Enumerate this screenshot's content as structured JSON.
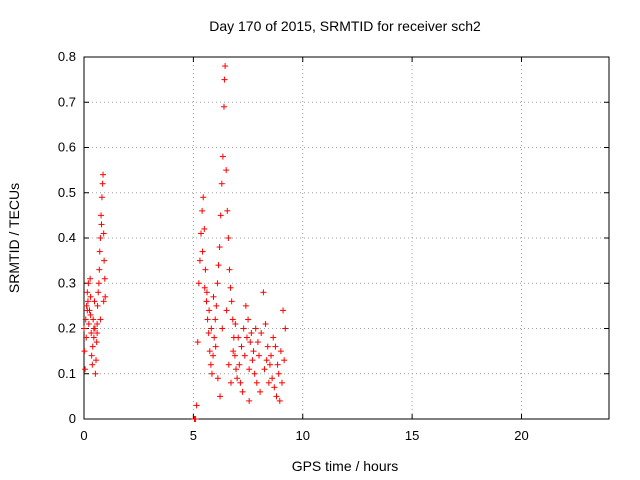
{
  "chart_data": {
    "type": "scatter",
    "title": "Day 170 of 2015, SRMTID for receiver sch2",
    "xlabel": "GPS time / hours",
    "ylabel": "SRMTID / TECUs",
    "xlim": [
      0,
      24
    ],
    "ylim": [
      0,
      0.8
    ],
    "x_ticks": [
      0,
      5,
      10,
      15,
      20
    ],
    "x_tick_labels": [
      "0",
      "5",
      "10",
      "15",
      "20"
    ],
    "y_ticks": [
      0,
      0.1,
      0.2,
      0.3,
      0.4,
      0.5,
      0.6,
      0.7,
      0.8
    ],
    "y_tick_labels": [
      "0",
      "0.1",
      "0.2",
      "0.3",
      "0.4",
      "0.5",
      "0.6",
      "0.7",
      "0.8"
    ],
    "grid": true,
    "marker": "+",
    "color": "#ff0000",
    "series": [
      {
        "name": "sch2",
        "points": [
          [
            0.0,
            0.2
          ],
          [
            0.02,
            0.15
          ],
          [
            0.05,
            0.11
          ],
          [
            0.08,
            0.22
          ],
          [
            0.1,
            0.18
          ],
          [
            0.12,
            0.25
          ],
          [
            0.15,
            0.28
          ],
          [
            0.18,
            0.26
          ],
          [
            0.2,
            0.3
          ],
          [
            0.22,
            0.21
          ],
          [
            0.25,
            0.24
          ],
          [
            0.28,
            0.31
          ],
          [
            0.3,
            0.27
          ],
          [
            0.33,
            0.19
          ],
          [
            0.35,
            0.14
          ],
          [
            0.38,
            0.12
          ],
          [
            0.4,
            0.16
          ],
          [
            0.42,
            0.22
          ],
          [
            0.45,
            0.18
          ],
          [
            0.48,
            0.26
          ],
          [
            0.5,
            0.2
          ],
          [
            0.52,
            0.1
          ],
          [
            0.55,
            0.13
          ],
          [
            0.58,
            0.17
          ],
          [
            0.6,
            0.21
          ],
          [
            0.62,
            0.25
          ],
          [
            0.65,
            0.28
          ],
          [
            0.68,
            0.3
          ],
          [
            0.7,
            0.33
          ],
          [
            0.72,
            0.37
          ],
          [
            0.75,
            0.4
          ],
          [
            0.78,
            0.45
          ],
          [
            0.8,
            0.43
          ],
          [
            0.82,
            0.49
          ],
          [
            0.85,
            0.52
          ],
          [
            0.87,
            0.54
          ],
          [
            0.9,
            0.41
          ],
          [
            0.92,
            0.35
          ],
          [
            0.95,
            0.31
          ],
          [
            0.97,
            0.27
          ],
          [
            0.15,
            0.24
          ],
          [
            0.3,
            0.23
          ],
          [
            0.45,
            0.2
          ],
          [
            0.6,
            0.19
          ],
          [
            0.75,
            0.22
          ],
          [
            0.9,
            0.26
          ],
          [
            5.05,
            0.0
          ],
          [
            5.1,
            0.0
          ],
          [
            5.15,
            0.03
          ],
          [
            5.2,
            0.17
          ],
          [
            5.25,
            0.3
          ],
          [
            5.3,
            0.35
          ],
          [
            5.35,
            0.41
          ],
          [
            5.4,
            0.46
          ],
          [
            5.45,
            0.49
          ],
          [
            5.5,
            0.42
          ],
          [
            5.55,
            0.33
          ],
          [
            5.6,
            0.26
          ],
          [
            5.65,
            0.22
          ],
          [
            5.7,
            0.19
          ],
          [
            5.75,
            0.15
          ],
          [
            5.8,
            0.12
          ],
          [
            5.85,
            0.1
          ],
          [
            5.9,
            0.14
          ],
          [
            5.95,
            0.18
          ],
          [
            6.0,
            0.22
          ],
          [
            6.05,
            0.25
          ],
          [
            6.1,
            0.3
          ],
          [
            6.15,
            0.34
          ],
          [
            6.2,
            0.38
          ],
          [
            6.25,
            0.45
          ],
          [
            6.3,
            0.52
          ],
          [
            6.35,
            0.58
          ],
          [
            6.4,
            0.69
          ],
          [
            6.42,
            0.75
          ],
          [
            6.45,
            0.78
          ],
          [
            6.5,
            0.55
          ],
          [
            6.55,
            0.46
          ],
          [
            6.6,
            0.4
          ],
          [
            6.65,
            0.33
          ],
          [
            6.7,
            0.29
          ],
          [
            6.75,
            0.26
          ],
          [
            6.8,
            0.22
          ],
          [
            6.85,
            0.18
          ],
          [
            6.9,
            0.14
          ],
          [
            6.95,
            0.11
          ],
          [
            7.0,
            0.09
          ],
          [
            7.1,
            0.12
          ],
          [
            7.2,
            0.16
          ],
          [
            7.3,
            0.2
          ],
          [
            7.4,
            0.25
          ],
          [
            7.5,
            0.22
          ],
          [
            7.6,
            0.17
          ],
          [
            7.7,
            0.13
          ],
          [
            7.8,
            0.1
          ],
          [
            7.9,
            0.08
          ],
          [
            8.0,
            0.14
          ],
          [
            8.1,
            0.19
          ],
          [
            8.2,
            0.28
          ],
          [
            8.3,
            0.21
          ],
          [
            8.4,
            0.16
          ],
          [
            8.5,
            0.12
          ],
          [
            8.6,
            0.09
          ],
          [
            8.7,
            0.07
          ],
          [
            8.8,
            0.05
          ],
          [
            8.9,
            0.1
          ],
          [
            9.0,
            0.15
          ],
          [
            9.1,
            0.24
          ],
          [
            9.2,
            0.2
          ],
          [
            9.15,
            0.13
          ],
          [
            9.05,
            0.08
          ],
          [
            8.95,
            0.04
          ],
          [
            8.85,
            0.12
          ],
          [
            8.75,
            0.16
          ],
          [
            8.65,
            0.18
          ],
          [
            8.55,
            0.14
          ],
          [
            7.05,
            0.18
          ],
          [
            7.15,
            0.08
          ],
          [
            7.25,
            0.06
          ],
          [
            7.35,
            0.14
          ],
          [
            7.45,
            0.18
          ],
          [
            7.55,
            0.11
          ],
          [
            7.65,
            0.19
          ],
          [
            7.75,
            0.15
          ],
          [
            7.85,
            0.2
          ],
          [
            7.95,
            0.17
          ],
          [
            6.02,
            0.16
          ],
          [
            6.12,
            0.09
          ],
          [
            6.22,
            0.05
          ],
          [
            6.32,
            0.2
          ],
          [
            6.52,
            0.24
          ],
          [
            6.62,
            0.12
          ],
          [
            6.72,
            0.08
          ],
          [
            6.82,
            0.15
          ],
          [
            6.92,
            0.21
          ],
          [
            5.62,
            0.28
          ],
          [
            5.72,
            0.24
          ],
          [
            5.82,
            0.2
          ],
          [
            5.92,
            0.27
          ],
          [
            5.42,
            0.37
          ],
          [
            5.52,
            0.29
          ],
          [
            8.25,
            0.11
          ],
          [
            8.45,
            0.08
          ],
          [
            8.35,
            0.13
          ],
          [
            8.05,
            0.06
          ],
          [
            7.55,
            0.04
          ]
        ]
      }
    ]
  }
}
